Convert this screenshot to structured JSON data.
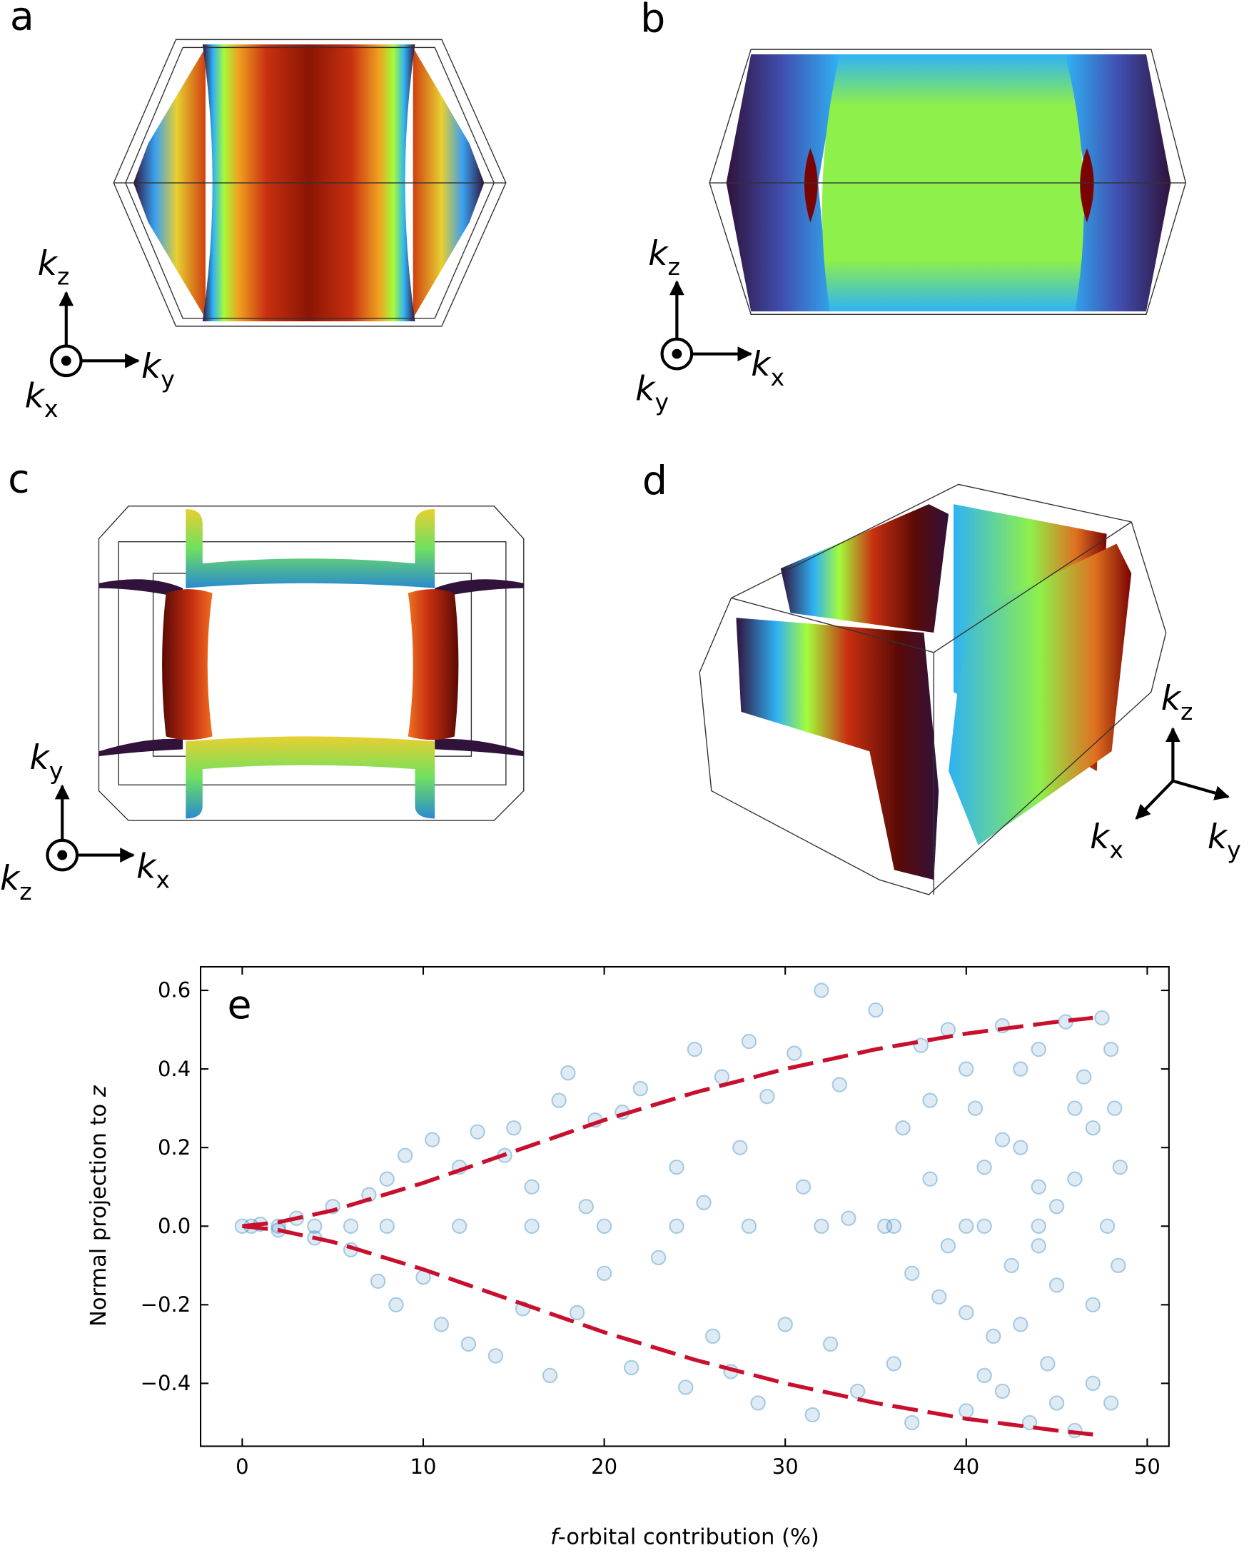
{
  "panels": [
    {
      "label": "a",
      "axes": [
        {
          "symbol": "k",
          "sub": "z"
        },
        {
          "symbol": "k",
          "sub": "y"
        },
        {
          "symbol": "k",
          "sub": "x"
        }
      ]
    },
    {
      "label": "b",
      "axes": [
        {
          "symbol": "k",
          "sub": "z"
        },
        {
          "symbol": "k",
          "sub": "x"
        },
        {
          "symbol": "k",
          "sub": "y"
        }
      ]
    },
    {
      "label": "c",
      "axes": [
        {
          "symbol": "k",
          "sub": "y"
        },
        {
          "symbol": "k",
          "sub": "x"
        },
        {
          "symbol": "k",
          "sub": "z"
        }
      ]
    },
    {
      "label": "d",
      "axes": [
        {
          "symbol": "k",
          "sub": "z"
        },
        {
          "symbol": "k",
          "sub": "x"
        },
        {
          "symbol": "k",
          "sub": "y"
        }
      ]
    }
  ],
  "chart_data": {
    "type": "scatter",
    "panel_label": "e",
    "xlabel": [
      "f",
      "-orbital contribution (%)"
    ],
    "ylabel": [
      "Normal projection to ",
      "z"
    ],
    "xlim": [
      -2.3,
      51.2
    ],
    "ylim": [
      -0.56,
      0.66
    ],
    "xticks": [
      0,
      10,
      20,
      30,
      40,
      50
    ],
    "yticks": [
      {
        "value": -0.4,
        "label": "−0.4"
      },
      {
        "value": -0.2,
        "label": "−0.2"
      },
      {
        "value": 0,
        "label": "0.0"
      },
      0.2,
      0.4,
      0.6
    ],
    "series": [
      {
        "type": "scatter",
        "color": "#1f77b4",
        "x": [
          0,
          0.5,
          1,
          2,
          3,
          4,
          5,
          6,
          7,
          7.5,
          8,
          8.5,
          9,
          10,
          10.5,
          11,
          12,
          12.5,
          13,
          14,
          14.5,
          15,
          15.5,
          16,
          17,
          17.5,
          18,
          18.5,
          19,
          19.5,
          20,
          21,
          21.5,
          22,
          23,
          24,
          24.5,
          25,
          25.5,
          26,
          26.5,
          27,
          27.5,
          28,
          28.5,
          29,
          30,
          30.5,
          31,
          31.5,
          32,
          32.5,
          33,
          33.5,
          34,
          35,
          35.5,
          36,
          36.5,
          37,
          37.5,
          38,
          38.5,
          39,
          40,
          40.5,
          41,
          41.5,
          42,
          42.5,
          43,
          43.5,
          44,
          44.5,
          45,
          45.5,
          46,
          46.5,
          47,
          47.5,
          47.8,
          48,
          48.2,
          48.4,
          48.5,
          2,
          4,
          6,
          8,
          12,
          16,
          20,
          24,
          28,
          32,
          36,
          40,
          44,
          40,
          41,
          42,
          43,
          44,
          45,
          46,
          47,
          48,
          46,
          45,
          47,
          44,
          43,
          42,
          41,
          40,
          39,
          38,
          37
        ],
        "values": [
          0,
          0,
          0.005,
          -0.01,
          0.02,
          -0.03,
          0.05,
          -0.06,
          0.08,
          -0.14,
          0.12,
          -0.2,
          0.18,
          -0.13,
          0.22,
          -0.25,
          0.15,
          -0.3,
          0.24,
          -0.33,
          0.18,
          0.25,
          -0.21,
          0.1,
          -0.38,
          0.32,
          0.39,
          -0.22,
          0.05,
          0.27,
          -0.12,
          0.29,
          -0.36,
          0.35,
          -0.08,
          0.15,
          -0.41,
          0.45,
          0.06,
          -0.28,
          0.38,
          -0.37,
          0.2,
          0.47,
          -0.45,
          0.33,
          -0.25,
          0.44,
          0.1,
          -0.48,
          0.6,
          -0.3,
          0.36,
          0.02,
          -0.42,
          0.55,
          0,
          -0.35,
          0.25,
          -0.5,
          0.46,
          0.12,
          -0.18,
          0.5,
          -0.47,
          0.3,
          0,
          -0.28,
          0.51,
          -0.1,
          0.2,
          -0.5,
          0.45,
          -0.35,
          0.05,
          0.52,
          -0.52,
          0.38,
          -0.2,
          0.53,
          0,
          -0.45,
          0.3,
          -0.1,
          0.15,
          0,
          0,
          0,
          0,
          0,
          0,
          0,
          0,
          0,
          0,
          0,
          0,
          0,
          0.4,
          -0.38,
          0.22,
          -0.25,
          0.1,
          -0.45,
          0.3,
          -0.4,
          0.45,
          0.12,
          -0.15,
          0.25,
          -0.05,
          0.4,
          -0.42,
          0.15,
          -0.22,
          -0.05,
          0.32,
          -0.12
        ]
      },
      {
        "type": "line",
        "color": "#c8102e",
        "x": [
          0,
          2,
          5,
          10,
          15,
          20,
          25,
          30,
          35,
          40,
          45,
          47
        ],
        "values": [
          0,
          0.01,
          0.04,
          0.11,
          0.19,
          0.27,
          0.34,
          0.4,
          0.45,
          0.49,
          0.52,
          0.53
        ]
      },
      {
        "type": "line",
        "color": "#c8102e",
        "x": [
          0,
          2,
          5,
          10,
          15,
          20,
          25,
          30,
          35,
          40,
          45,
          47
        ],
        "values": [
          0,
          -0.01,
          -0.04,
          -0.11,
          -0.19,
          -0.27,
          -0.34,
          -0.4,
          -0.45,
          -0.49,
          -0.52,
          -0.53
        ]
      }
    ]
  }
}
